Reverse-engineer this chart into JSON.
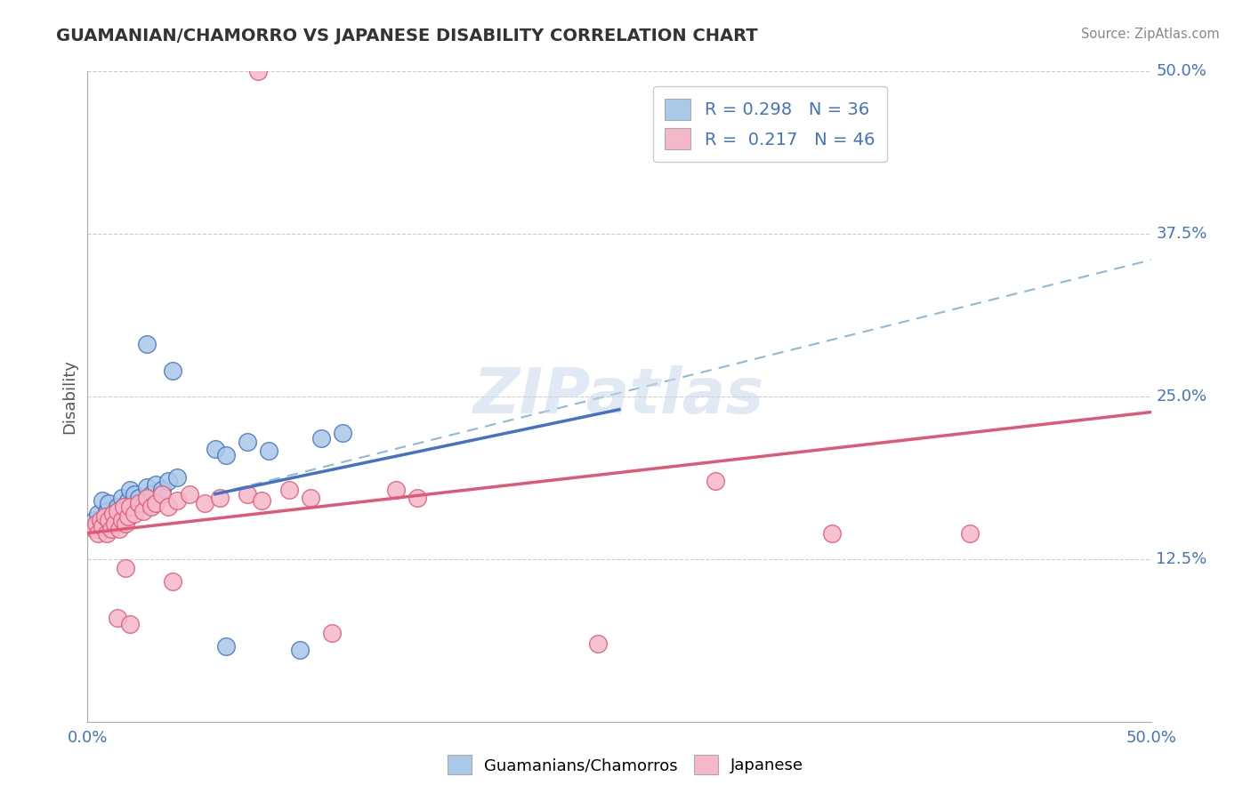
{
  "title": "GUAMANIAN/CHAMORRO VS JAPANESE DISABILITY CORRELATION CHART",
  "source": "Source: ZipAtlas.com",
  "ylabel": "Disability",
  "xlim": [
    0.0,
    0.5
  ],
  "ylim": [
    0.0,
    0.5
  ],
  "xtick_labels": [
    "0.0%",
    "50.0%"
  ],
  "ytick_labels": [
    "12.5%",
    "25.0%",
    "37.5%",
    "50.0%"
  ],
  "ytick_positions": [
    0.125,
    0.25,
    0.375,
    0.5
  ],
  "legend_r1": "0.298",
  "legend_n1": "36",
  "legend_r2": "0.217",
  "legend_n2": "46",
  "color_blue": "#aac8e8",
  "color_pink": "#f5b8c8",
  "line_blue": "#4472c4",
  "line_pink": "#e05878",
  "series1_label": "Guamanians/Chamorros",
  "series2_label": "Japanese",
  "blue_points": [
    [
      0.003,
      0.155
    ],
    [
      0.005,
      0.16
    ],
    [
      0.006,
      0.148
    ],
    [
      0.007,
      0.17
    ],
    [
      0.008,
      0.155
    ],
    [
      0.009,
      0.162
    ],
    [
      0.01,
      0.168
    ],
    [
      0.011,
      0.155
    ],
    [
      0.012,
      0.16
    ],
    [
      0.013,
      0.152
    ],
    [
      0.014,
      0.165
    ],
    [
      0.015,
      0.158
    ],
    [
      0.016,
      0.172
    ],
    [
      0.017,
      0.165
    ],
    [
      0.018,
      0.158
    ],
    [
      0.019,
      0.17
    ],
    [
      0.02,
      0.178
    ],
    [
      0.022,
      0.175
    ],
    [
      0.024,
      0.172
    ],
    [
      0.026,
      0.168
    ],
    [
      0.028,
      0.18
    ],
    [
      0.03,
      0.175
    ],
    [
      0.032,
      0.182
    ],
    [
      0.035,
      0.178
    ],
    [
      0.038,
      0.185
    ],
    [
      0.042,
      0.188
    ],
    [
      0.06,
      0.21
    ],
    [
      0.065,
      0.205
    ],
    [
      0.075,
      0.215
    ],
    [
      0.085,
      0.208
    ],
    [
      0.11,
      0.218
    ],
    [
      0.12,
      0.222
    ],
    [
      0.028,
      0.29
    ],
    [
      0.04,
      0.27
    ],
    [
      0.065,
      0.058
    ],
    [
      0.1,
      0.055
    ]
  ],
  "pink_points": [
    [
      0.003,
      0.148
    ],
    [
      0.004,
      0.152
    ],
    [
      0.005,
      0.145
    ],
    [
      0.006,
      0.155
    ],
    [
      0.007,
      0.15
    ],
    [
      0.008,
      0.158
    ],
    [
      0.009,
      0.145
    ],
    [
      0.01,
      0.155
    ],
    [
      0.011,
      0.148
    ],
    [
      0.012,
      0.16
    ],
    [
      0.013,
      0.152
    ],
    [
      0.014,
      0.162
    ],
    [
      0.015,
      0.148
    ],
    [
      0.016,
      0.155
    ],
    [
      0.017,
      0.165
    ],
    [
      0.018,
      0.152
    ],
    [
      0.019,
      0.158
    ],
    [
      0.02,
      0.165
    ],
    [
      0.022,
      0.16
    ],
    [
      0.024,
      0.168
    ],
    [
      0.026,
      0.162
    ],
    [
      0.028,
      0.172
    ],
    [
      0.03,
      0.165
    ],
    [
      0.032,
      0.168
    ],
    [
      0.035,
      0.175
    ],
    [
      0.038,
      0.165
    ],
    [
      0.042,
      0.17
    ],
    [
      0.048,
      0.175
    ],
    [
      0.055,
      0.168
    ],
    [
      0.062,
      0.172
    ],
    [
      0.075,
      0.175
    ],
    [
      0.082,
      0.17
    ],
    [
      0.095,
      0.178
    ],
    [
      0.105,
      0.172
    ],
    [
      0.145,
      0.178
    ],
    [
      0.155,
      0.172
    ],
    [
      0.295,
      0.185
    ],
    [
      0.35,
      0.145
    ],
    [
      0.018,
      0.118
    ],
    [
      0.04,
      0.108
    ],
    [
      0.08,
      0.5
    ],
    [
      0.014,
      0.08
    ],
    [
      0.02,
      0.075
    ],
    [
      0.115,
      0.068
    ],
    [
      0.24,
      0.06
    ],
    [
      0.415,
      0.145
    ]
  ],
  "blue_line": [
    [
      0.06,
      0.175
    ],
    [
      0.25,
      0.24
    ]
  ],
  "pink_line": [
    [
      0.0,
      0.145
    ],
    [
      0.5,
      0.238
    ]
  ],
  "dash_line": [
    [
      0.06,
      0.175
    ],
    [
      0.5,
      0.355
    ]
  ]
}
